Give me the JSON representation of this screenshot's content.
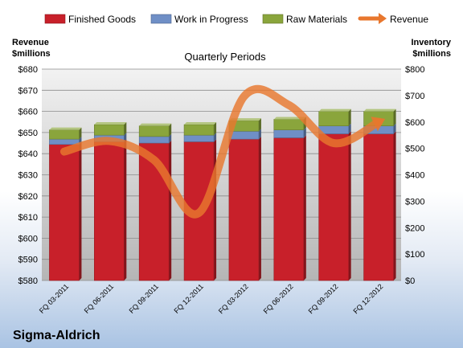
{
  "chart_data": {
    "type": "bar",
    "subtitle": "Quarterly Periods",
    "company": "Sigma-Aldrich",
    "left_axis_label": [
      "Revenue",
      "$millions"
    ],
    "right_axis_label": [
      "Inventory",
      "$millions"
    ],
    "categories": [
      "FQ 03-2011",
      "FQ 06-2011",
      "FQ 09-2011",
      "FQ 12-2011",
      "FQ 03-2012",
      "FQ 06-2012",
      "FQ 09-2012",
      "FQ 12-2012"
    ],
    "stacked": true,
    "series": [
      {
        "name": "Finished Goods",
        "axis": "right",
        "color": "#c8202a",
        "values": [
          515,
          525,
          520,
          525,
          535,
          540,
          555,
          555
        ]
      },
      {
        "name": "Work in Progress",
        "axis": "right",
        "color": "#6f8fc6",
        "values": [
          20,
          25,
          25,
          25,
          30,
          30,
          30,
          30
        ]
      },
      {
        "name": "Raw Materials",
        "axis": "right",
        "color": "#8aa53c",
        "values": [
          35,
          40,
          40,
          40,
          40,
          40,
          55,
          55
        ]
      }
    ],
    "line": {
      "name": "Revenue",
      "axis": "left",
      "color": "#e8772e",
      "values": [
        641,
        646,
        637,
        612,
        667,
        663,
        645,
        655
      ]
    },
    "left_ticks": [
      "$680",
      "$670",
      "$660",
      "$650",
      "$640",
      "$630",
      "$620",
      "$610",
      "$600",
      "$590",
      "$580"
    ],
    "right_ticks": [
      "$800",
      "$700",
      "$600",
      "$500",
      "$400",
      "$300",
      "$200",
      "$100",
      "$0"
    ],
    "ylim_left": [
      580,
      680
    ],
    "ylim_right": [
      0,
      800
    ],
    "grid": true,
    "legend_position": "top"
  }
}
